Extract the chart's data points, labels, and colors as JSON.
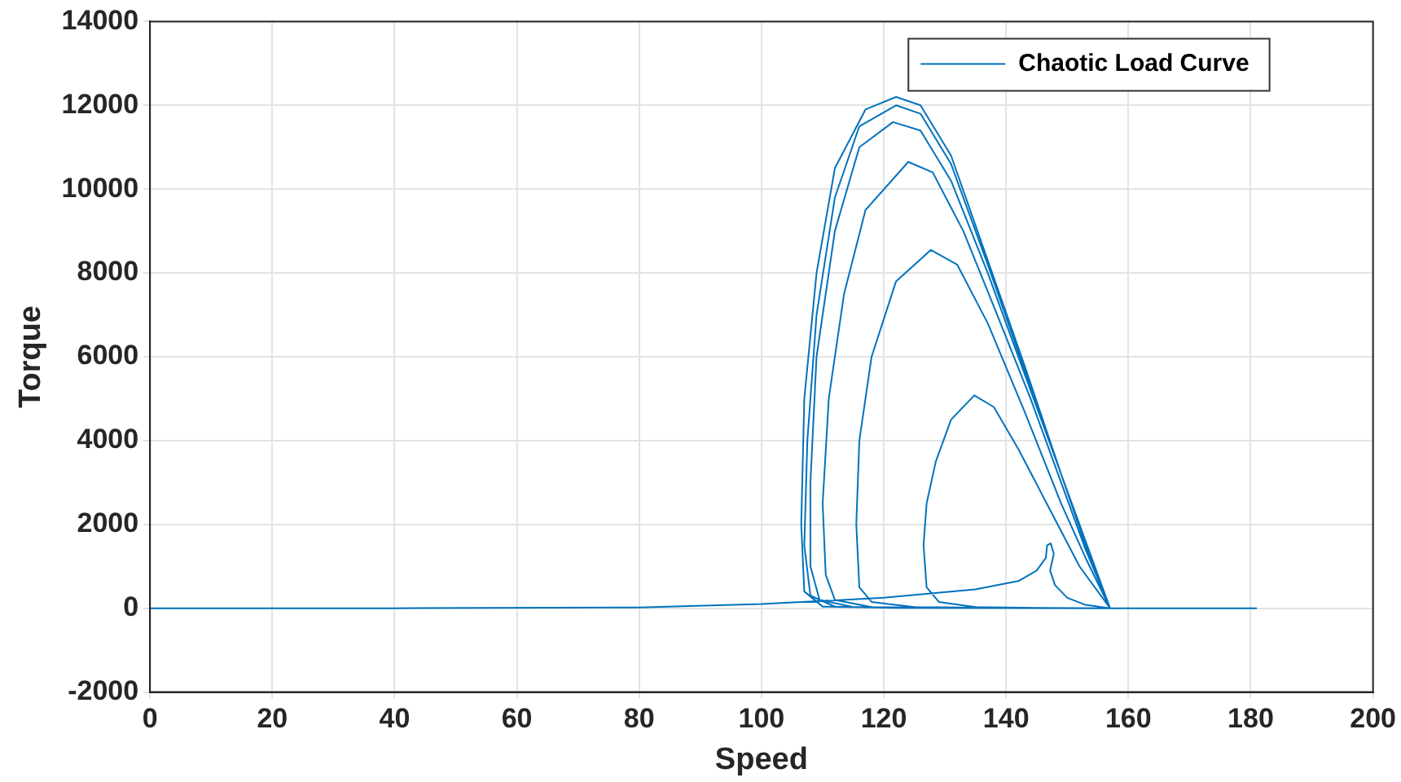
{
  "chart_data": {
    "type": "line",
    "xlabel": "Speed",
    "ylabel": "Torque",
    "legend": "top right",
    "grid": true,
    "marker": "none",
    "line_style": "solid",
    "xlim": [
      0,
      200
    ],
    "xticks": [
      0,
      20,
      40,
      60,
      80,
      100,
      120,
      140,
      160,
      180,
      200
    ],
    "ylim": [
      -2000,
      14000
    ],
    "yticks": [
      -2000,
      0,
      2000,
      4000,
      6000,
      8000,
      10000,
      12000,
      14000
    ],
    "series": [
      {
        "name": "Chaotic Load Curve",
        "color": "#0072bd",
        "x": [
          0,
          40,
          80,
          100,
          120,
          135,
          142,
          145,
          146.5,
          146.7,
          147.3,
          147.8,
          147.2,
          148,
          150,
          153,
          157,
          145,
          135,
          129,
          127,
          126.5,
          127,
          128.5,
          131,
          134.8,
          138,
          142,
          147,
          152,
          157,
          140,
          125,
          118,
          116,
          115.5,
          116,
          118,
          122,
          127.7,
          132,
          137,
          143,
          149,
          153,
          157,
          135,
          118,
          112,
          110.5,
          110,
          111,
          113.5,
          117,
          124,
          128,
          133,
          138,
          144,
          149,
          153,
          157,
          130,
          115,
          109.5,
          108,
          108,
          109,
          112,
          116,
          121.5,
          126,
          131,
          137,
          143,
          149,
          153,
          157,
          125,
          112,
          108,
          107,
          107.5,
          109,
          112,
          116,
          122,
          126,
          131,
          137,
          143,
          149,
          157,
          122,
          110,
          107,
          106.5,
          107,
          109,
          112,
          117,
          122,
          126,
          131,
          137,
          143,
          149,
          157,
          170,
          181
        ],
        "values": [
          0,
          0,
          20,
          100,
          250,
          450,
          650,
          900,
          1200,
          1500,
          1550,
          1300,
          900,
          550,
          250,
          80,
          0,
          10,
          30,
          150,
          500,
          1500,
          2500,
          3500,
          4500,
          5080,
          4800,
          3800,
          2400,
          1000,
          0,
          10,
          30,
          150,
          500,
          2000,
          4000,
          6000,
          7800,
          8550,
          8200,
          6800,
          4700,
          2500,
          1200,
          0,
          10,
          30,
          200,
          800,
          2500,
          5000,
          7500,
          9500,
          10650,
          10400,
          9000,
          7200,
          5000,
          3000,
          1400,
          0,
          10,
          30,
          200,
          1000,
          3000,
          6000,
          9000,
          11000,
          11600,
          11400,
          10200,
          8000,
          5600,
          3200,
          1500,
          0,
          10,
          40,
          300,
          1500,
          4000,
          7000,
          9800,
          11500,
          12000,
          11800,
          10600,
          8200,
          5700,
          3200,
          0,
          10,
          40,
          400,
          2000,
          5000,
          8000,
          10500,
          11900,
          12200,
          12000,
          10800,
          8300,
          5800,
          3200,
          0,
          0,
          0
        ]
      }
    ]
  }
}
